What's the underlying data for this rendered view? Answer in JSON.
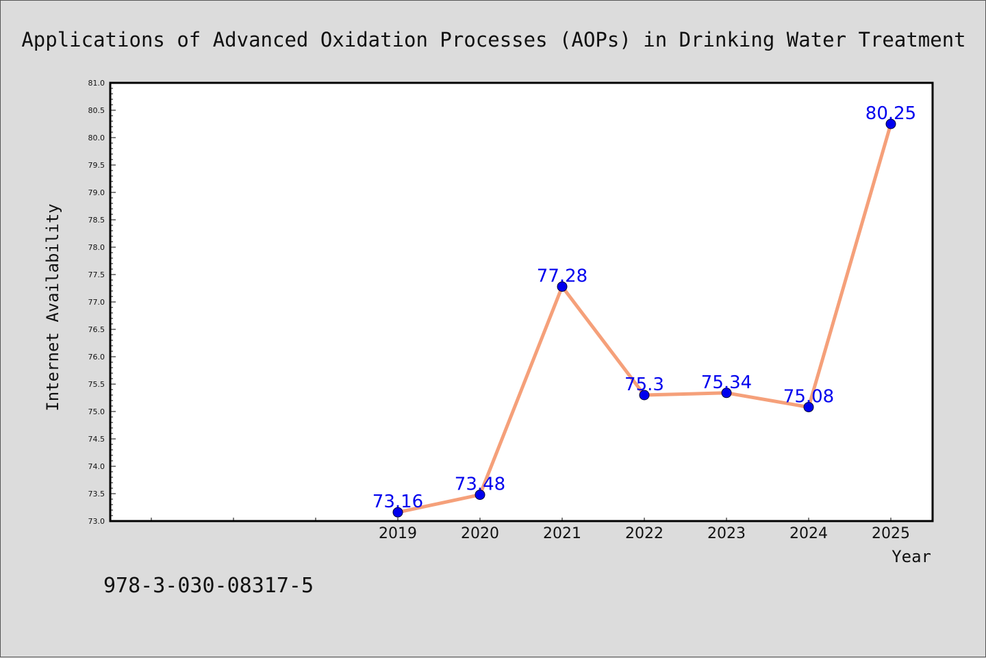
{
  "chart_data": {
    "type": "line",
    "title": "Applications of Advanced Oxidation Processes (AOPs) in Drinking Water Treatment",
    "xlabel": "Year",
    "ylabel": "Internet Availability",
    "categories": [
      "",
      "",
      "",
      "2019",
      "2020",
      "2021",
      "2022",
      "2023",
      "2024",
      "2025"
    ],
    "series": [
      {
        "x": [
          "2019",
          "2020",
          "2021",
          "2022",
          "2023",
          "2024",
          "2025"
        ],
        "values": [
          73.16,
          73.48,
          77.28,
          75.3,
          75.34,
          75.08,
          80.25
        ],
        "labels": [
          "73.16",
          "73.48",
          "77.28",
          "75.3",
          "75.34",
          "75.08",
          "80.25"
        ]
      }
    ],
    "ylim": [
      73.0,
      81.0
    ],
    "yticks": [
      "73.0",
      "73.5",
      "74.0",
      "74.5",
      "75.0",
      "75.5",
      "76.0",
      "76.5",
      "77.0",
      "77.5",
      "78.0",
      "78.5",
      "79.0",
      "79.5",
      "80.0",
      "80.5",
      "81.0"
    ],
    "grid": false,
    "legend": "none",
    "colors": {
      "line": "#f5a07a",
      "marker": "#0000ee",
      "label": "#0000ee",
      "background": "#dcdcdc",
      "plot_background": "#ffffff"
    }
  },
  "footer": {
    "isbn": "978-3-030-08317-5"
  }
}
